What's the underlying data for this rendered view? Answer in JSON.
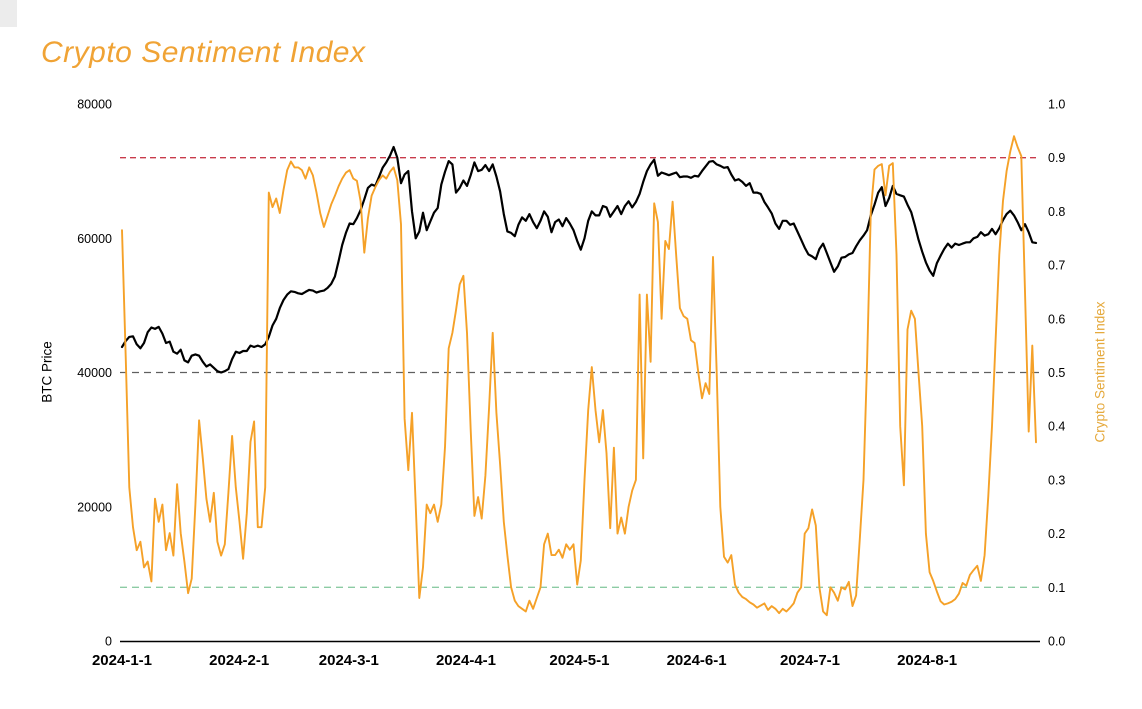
{
  "header": {
    "title": "Crypto Sentiment Index"
  },
  "colors": {
    "background": "#ffffff",
    "title": "#f0a335",
    "btc_line": "#000000",
    "sentiment_line": "#f5a128",
    "right_axis_label": "#e5a93c",
    "ref_high": "#c93b4b",
    "ref_mid": "#5f5f5f",
    "ref_low": "#8ccba4",
    "axis_text": "#000000"
  },
  "chart_data": {
    "type": "line",
    "title": "Crypto Sentiment Index",
    "x_start_date": "2024-01-01",
    "x_end_date": "2024-08-31",
    "x_axis": {
      "tick_labels": [
        "2024-1-1",
        "2024-2-1",
        "2024-3-1",
        "2024-4-1",
        "2024-5-1",
        "2024-6-1",
        "2024-7-1",
        "2024-8-1"
      ],
      "tick_day_offsets": [
        0,
        31,
        60,
        91,
        121,
        152,
        182,
        213
      ]
    },
    "left_axis": {
      "label": "BTC Price",
      "min": 0,
      "max": 80000,
      "ticks": [
        0,
        20000,
        40000,
        60000,
        80000
      ],
      "tick_labels": [
        "0",
        "20000",
        "40000",
        "60000",
        "80000"
      ]
    },
    "right_axis": {
      "label": "Crypto Sentiment Index",
      "min": 0.0,
      "max": 1.0,
      "ticks": [
        0.0,
        0.1,
        0.2,
        0.3,
        0.4,
        0.5,
        0.6,
        0.7,
        0.8,
        0.9,
        1.0
      ],
      "tick_labels": [
        "0.0",
        "0.1",
        "0.2",
        "0.3",
        "0.4",
        "0.5",
        "0.6",
        "0.7",
        "0.8",
        "0.9",
        "1.0"
      ]
    },
    "grid": false,
    "legend": "none",
    "reference_lines": [
      {
        "axis": "right",
        "value": 0.9,
        "color": "#c93b4b",
        "style": "dashed"
      },
      {
        "axis": "right",
        "value": 0.5,
        "color": "#5f5f5f",
        "style": "dashed"
      },
      {
        "axis": "right",
        "value": 0.1,
        "color": "#8ccba4",
        "style": "dashed"
      }
    ],
    "series": [
      {
        "name": "BTC Price",
        "axis": "left",
        "color": "#000000",
        "line_width": 2.2,
        "values": [
          43800,
          44700,
          45300,
          45400,
          44200,
          43600,
          44400,
          46000,
          46700,
          46500,
          46800,
          45800,
          44400,
          44600,
          43100,
          42800,
          43400,
          41800,
          41500,
          42500,
          42700,
          42500,
          41600,
          40900,
          41200,
          40700,
          40200,
          40000,
          40200,
          40500,
          42000,
          43100,
          42900,
          43200,
          43200,
          44000,
          43800,
          44000,
          43800,
          44200,
          45300,
          47000,
          48000,
          49600,
          50800,
          51600,
          52100,
          52000,
          51800,
          51700,
          52000,
          52300,
          52200,
          51900,
          52100,
          52200,
          52600,
          53200,
          54300,
          56600,
          59000,
          60800,
          62200,
          62100,
          63000,
          64200,
          65800,
          67500,
          68000,
          67800,
          69100,
          70500,
          71300,
          72300,
          73600,
          72000,
          68200,
          69500,
          70000,
          64000,
          60000,
          61000,
          63800,
          61200,
          62500,
          63800,
          64500,
          68000,
          69900,
          71500,
          71000,
          66800,
          67500,
          68600,
          67800,
          69400,
          71300,
          70000,
          70200,
          70900,
          70000,
          71000,
          69200,
          67000,
          63600,
          61000,
          60800,
          60300,
          62000,
          63100,
          62600,
          63600,
          62400,
          61500,
          62600,
          64000,
          63200,
          60900,
          62400,
          62800,
          61800,
          63000,
          62200,
          61200,
          59600,
          58300,
          60000,
          62600,
          64000,
          63400,
          63400,
          64800,
          64600,
          63200,
          64000,
          64800,
          63600,
          64800,
          65500,
          64600,
          65400,
          66600,
          68400,
          70000,
          71000,
          71700,
          69300,
          69800,
          69600,
          69400,
          69600,
          69800,
          69100,
          69200,
          69200,
          69000,
          69300,
          69200,
          70000,
          70700,
          71400,
          71500,
          71000,
          70800,
          70500,
          70600,
          69500,
          68600,
          68800,
          68400,
          67800,
          68200,
          66800,
          66800,
          66600,
          65400,
          64600,
          63700,
          62200,
          61400,
          62600,
          62600,
          62000,
          62200,
          61000,
          59800,
          58600,
          57600,
          57300,
          56900,
          58400,
          59200,
          57800,
          56400,
          55000,
          55800,
          57100,
          57200,
          57600,
          57800,
          58800,
          59700,
          60400,
          61200,
          63400,
          65000,
          66800,
          67600,
          64800,
          66000,
          67800,
          66600,
          66400,
          66200,
          65000,
          63900,
          61900,
          59800,
          58000,
          56400,
          55200,
          54400,
          56300,
          57400,
          58400,
          59200,
          58600,
          59200,
          59000,
          59200,
          59400,
          59400,
          60000,
          60200,
          60900,
          60400,
          60600,
          61400,
          60600,
          61500,
          62700,
          63600,
          64100,
          63400,
          62400,
          61200,
          62100,
          60900,
          59400,
          59300
        ]
      },
      {
        "name": "Crypto Sentiment Index",
        "axis": "right",
        "color": "#f5a128",
        "line_width": 1.9,
        "values": [
          0.765,
          0.53,
          0.286,
          0.212,
          0.169,
          0.185,
          0.137,
          0.148,
          0.111,
          0.265,
          0.222,
          0.254,
          0.169,
          0.201,
          0.159,
          0.292,
          0.201,
          0.148,
          0.089,
          0.116,
          0.254,
          0.411,
          0.34,
          0.265,
          0.222,
          0.276,
          0.185,
          0.159,
          0.18,
          0.276,
          0.382,
          0.286,
          0.222,
          0.153,
          0.238,
          0.371,
          0.409,
          0.212,
          0.212,
          0.286,
          0.835,
          0.808,
          0.824,
          0.797,
          0.84,
          0.877,
          0.893,
          0.882,
          0.882,
          0.877,
          0.861,
          0.882,
          0.867,
          0.835,
          0.797,
          0.771,
          0.792,
          0.813,
          0.829,
          0.847,
          0.861,
          0.872,
          0.877,
          0.861,
          0.857,
          0.819,
          0.723,
          0.787,
          0.829,
          0.845,
          0.858,
          0.867,
          0.861,
          0.874,
          0.882,
          0.858,
          0.776,
          0.414,
          0.318,
          0.425,
          0.254,
          0.08,
          0.137,
          0.254,
          0.238,
          0.254,
          0.222,
          0.254,
          0.361,
          0.545,
          0.574,
          0.616,
          0.664,
          0.68,
          0.574,
          0.393,
          0.233,
          0.268,
          0.228,
          0.308,
          0.435,
          0.574,
          0.425,
          0.329,
          0.222,
          0.159,
          0.1,
          0.075,
          0.065,
          0.06,
          0.055,
          0.075,
          0.06,
          0.08,
          0.1,
          0.18,
          0.2,
          0.16,
          0.16,
          0.17,
          0.155,
          0.18,
          0.17,
          0.18,
          0.105,
          0.15,
          0.3,
          0.43,
          0.51,
          0.43,
          0.37,
          0.43,
          0.35,
          0.21,
          0.36,
          0.2,
          0.23,
          0.2,
          0.25,
          0.28,
          0.3,
          0.645,
          0.34,
          0.645,
          0.52,
          0.815,
          0.78,
          0.6,
          0.745,
          0.73,
          0.818,
          0.715,
          0.62,
          0.605,
          0.6,
          0.56,
          0.555,
          0.5,
          0.452,
          0.48,
          0.46,
          0.715,
          0.5,
          0.25,
          0.157,
          0.146,
          0.16,
          0.105,
          0.09,
          0.082,
          0.078,
          0.072,
          0.068,
          0.062,
          0.066,
          0.07,
          0.058,
          0.065,
          0.06,
          0.052,
          0.06,
          0.055,
          0.062,
          0.07,
          0.09,
          0.1,
          0.2,
          0.21,
          0.245,
          0.215,
          0.1,
          0.055,
          0.048,
          0.1,
          0.09,
          0.075,
          0.1,
          0.096,
          0.11,
          0.065,
          0.085,
          0.19,
          0.3,
          0.52,
          0.8,
          0.878,
          0.885,
          0.888,
          0.83,
          0.885,
          0.89,
          0.72,
          0.4,
          0.29,
          0.58,
          0.615,
          0.6,
          0.5,
          0.4,
          0.2,
          0.128,
          0.112,
          0.092,
          0.074,
          0.068,
          0.07,
          0.073,
          0.078,
          0.088,
          0.108,
          0.103,
          0.123,
          0.132,
          0.14,
          0.112,
          0.16,
          0.27,
          0.4,
          0.56,
          0.72,
          0.82,
          0.875,
          0.912,
          0.94,
          0.92,
          0.903,
          0.65,
          0.39,
          0.55,
          0.37
        ]
      }
    ]
  }
}
